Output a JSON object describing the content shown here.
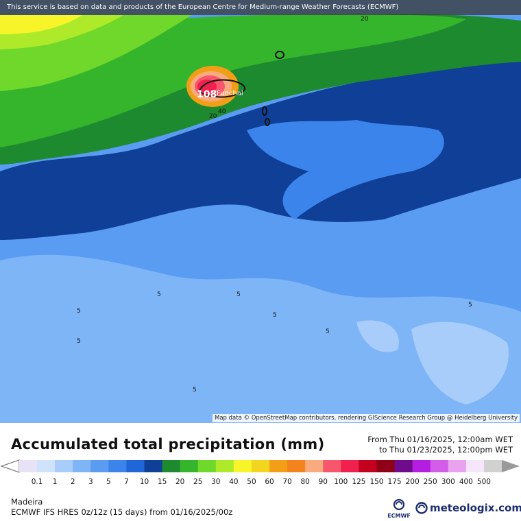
{
  "banner": {
    "text": "This service is based on data and products of the European Centre for Medium-range Weather Forecasts (ECMWF)"
  },
  "map": {
    "city": "Funchal",
    "contour_labels": [
      "20",
      "108",
      "40",
      "20",
      "5",
      "5",
      "5",
      "5",
      "5",
      "5",
      "5",
      "5"
    ],
    "attribution": "Map data © OpenStreetMap contributors, rendering GIScience Research Group @ Heidelberg University"
  },
  "legend": {
    "title": "Accumulated total precipitation (mm)",
    "period_from": "From Thu 01/16/2025, 12:00am WET",
    "period_to": "to Thu 01/23/2025, 12:00pm WET",
    "ticks": [
      "0.1",
      "1",
      "2",
      "3",
      "5",
      "7",
      "10",
      "15",
      "20",
      "25",
      "30",
      "40",
      "50",
      "60",
      "70",
      "80",
      "90",
      "100",
      "125",
      "150",
      "175",
      "200",
      "250",
      "300",
      "400",
      "500"
    ],
    "colors": [
      "#e7e2f5",
      "#cfe3fb",
      "#a8cdfa",
      "#7eb5f7",
      "#5a9cf2",
      "#3a84ec",
      "#1f67d8",
      "#0f3f96",
      "#1d8a2f",
      "#35b52c",
      "#6fd82a",
      "#aeea2a",
      "#f7f52a",
      "#f1d51e",
      "#f29f17",
      "#f5831d",
      "#f9ab7f",
      "#f8566d",
      "#f0204f",
      "#c3001d",
      "#8f0016",
      "#6e0c8b",
      "#b31ee0",
      "#d35ce8",
      "#e8a2ef",
      "#f6e6fb",
      "#d1d1d1"
    ]
  },
  "footer": {
    "region": "Madeira",
    "model": "ECMWF IFS HRES 0z/12z (15 days) from  01/16/2025/00z",
    "ecmwf_logo_text": "ECMWF",
    "meteologix_text": "meteologix.com"
  }
}
